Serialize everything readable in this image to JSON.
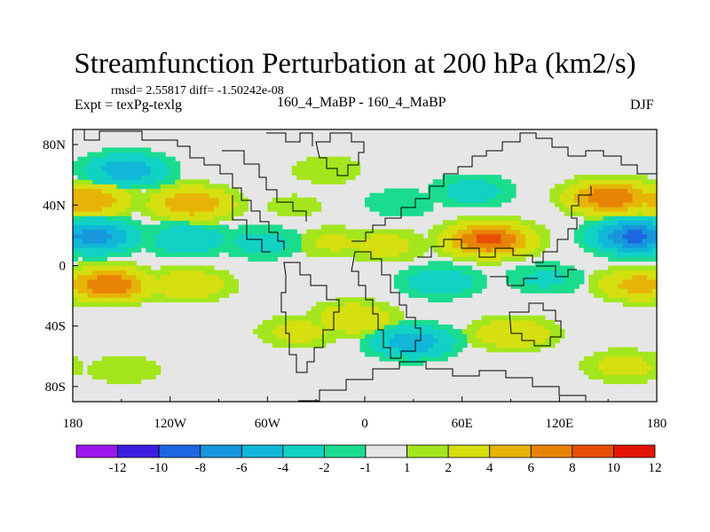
{
  "title": "Streamfunction Perturbation at 200 hPa (km2/s)",
  "stats": "rmsd= 2.55817 diff= -1.50242e-08",
  "left_label": "Expt = texPg-texlg",
  "center_label": "160_4_MaBP - 160_4_MaBP",
  "right_label": "DJF",
  "chart_data": {
    "type": "heatmap",
    "title": "Streamfunction Perturbation at 200 hPa (km2/s)",
    "projection": "cylindrical-equidistant",
    "xlabel": "",
    "ylabel": "",
    "x_ticks": [
      "180",
      "120W",
      "60W",
      "0",
      "60E",
      "120E",
      "180"
    ],
    "y_ticks": [
      "80N",
      "40N",
      "0",
      "40S",
      "80S"
    ],
    "colorbar_labels": [
      "-12",
      "-10",
      "-8",
      "-6",
      "-4",
      "-2",
      "-1",
      "1",
      "2",
      "4",
      "6",
      "8",
      "10",
      "12"
    ],
    "colorbar_levels": [
      -14,
      -12,
      -10,
      -8,
      -6,
      -4,
      -2,
      -1,
      1,
      2,
      4,
      6,
      8,
      10,
      12,
      14
    ],
    "colors": [
      "#9d16ef",
      "#3c1ee0",
      "#1c67e1",
      "#1796dc",
      "#10b7d8",
      "#11d2c4",
      "#1adc8e",
      "#e6e6e6",
      "#a3e61e",
      "#d6df0f",
      "#e6b407",
      "#e88306",
      "#e84f06",
      "#e51505"
    ],
    "blobs": [
      {
        "lon": -148,
        "lat": 62,
        "value": -5.5
      },
      {
        "lon": -172,
        "lat": 42,
        "value": 6
      },
      {
        "lon": -108,
        "lat": 40,
        "value": 6
      },
      {
        "lon": -45,
        "lat": 38,
        "value": 1.5
      },
      {
        "lon": -168,
        "lat": 18,
        "value": -7
      },
      {
        "lon": -110,
        "lat": 16,
        "value": -4
      },
      {
        "lon": -65,
        "lat": 14,
        "value": -3
      },
      {
        "lon": -160,
        "lat": -14,
        "value": 8
      },
      {
        "lon": -110,
        "lat": -14,
        "value": 4
      },
      {
        "lon": -150,
        "lat": -70,
        "value": 2
      },
      {
        "lon": -42,
        "lat": -45,
        "value": 3
      },
      {
        "lon": -8,
        "lat": -36,
        "value": 4
      },
      {
        "lon": 28,
        "lat": -52,
        "value": -5.5
      },
      {
        "lon": -25,
        "lat": 62,
        "value": 2
      },
      {
        "lon": 20,
        "lat": 40,
        "value": -2
      },
      {
        "lon": -20,
        "lat": 14,
        "value": 2.5
      },
      {
        "lon": 10,
        "lat": 12,
        "value": 3
      },
      {
        "lon": 75,
        "lat": 16,
        "value": 9
      },
      {
        "lon": 65,
        "lat": 48,
        "value": -3
      },
      {
        "lon": 45,
        "lat": -12,
        "value": -3.5
      },
      {
        "lon": 110,
        "lat": -10,
        "value": -2.5
      },
      {
        "lon": 90,
        "lat": -46,
        "value": 4
      },
      {
        "lon": 150,
        "lat": 44,
        "value": 8
      },
      {
        "lon": 165,
        "lat": 18,
        "value": -9
      },
      {
        "lon": 168,
        "lat": -14,
        "value": 5
      },
      {
        "lon": 158,
        "lat": -68,
        "value": 3
      }
    ]
  }
}
